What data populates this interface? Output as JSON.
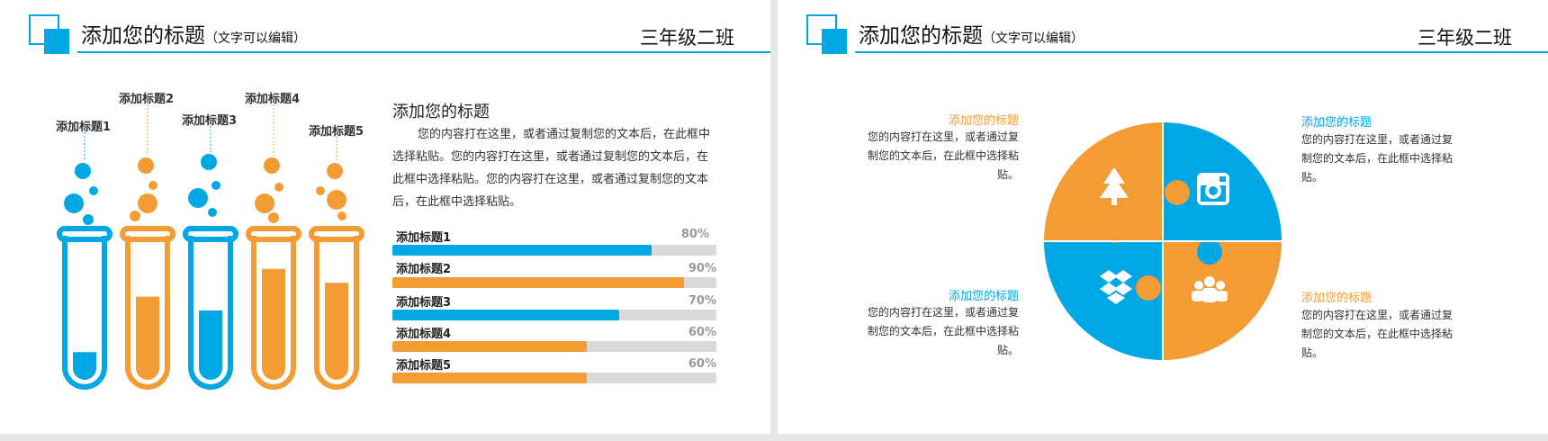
{
  "colors": {
    "blue": "#00a7e5",
    "orange": "#f39c34",
    "track": "#d9d9d9"
  },
  "header": {
    "title": "添加您的标题",
    "subtitle": "（文字可以编辑）",
    "class_label": "三年级二班"
  },
  "left": {
    "tubes": [
      {
        "label": "添加标题1",
        "color": "blue",
        "level": 0.2
      },
      {
        "label": "添加标题2",
        "color": "orange",
        "level": 0.6
      },
      {
        "label": "添加标题3",
        "color": "blue",
        "level": 0.5
      },
      {
        "label": "添加标题4",
        "color": "orange",
        "level": 0.8
      },
      {
        "label": "添加标题5",
        "color": "orange",
        "level": 0.7
      }
    ],
    "section_title": "添加您的标题",
    "paragraph": "您的内容打在这里，或者通过复制您的文本后，在此框中选择粘贴。您的内容打在这里，或者通过复制您的文本后，在此框中选择粘贴。您的内容打在这里，或者通过复制您的文本后，在此框中选择粘贴。",
    "bars": [
      {
        "label": "添加标题1",
        "value": 80,
        "value_label": "80%",
        "color": "blue"
      },
      {
        "label": "添加标题2",
        "value": 90,
        "value_label": "90%",
        "color": "orange"
      },
      {
        "label": "添加标题3",
        "value": 70,
        "value_label": "70%",
        "color": "blue"
      },
      {
        "label": "添加标题4",
        "value": 60,
        "value_label": "60%",
        "color": "orange"
      },
      {
        "label": "添加标题5",
        "value": 60,
        "value_label": "60%",
        "color": "orange"
      }
    ]
  },
  "right": {
    "blocks": [
      {
        "heading": "添加您的标题",
        "text": "您的内容打在这里，或者通过复制您的文本后，在此框中选择粘贴。",
        "color": "orange"
      },
      {
        "heading": "添加您的标题",
        "text": "您的内容打在这里，或者通过复制您的文本后，在此框中选择粘贴。",
        "color": "blue"
      },
      {
        "heading": "添加您的标题",
        "text": "您的内容打在这里，或者通过复制您的文本后，在此框中选择粘贴。",
        "color": "blue"
      },
      {
        "heading": "添加您的标题",
        "text": "您的内容打在这里，或者通过复制您的文本后，在此框中选择粘贴。",
        "color": "orange"
      }
    ],
    "puzzle_icons": [
      "tree-icon",
      "instagram-icon",
      "dropbox-icon",
      "users-icon"
    ]
  }
}
